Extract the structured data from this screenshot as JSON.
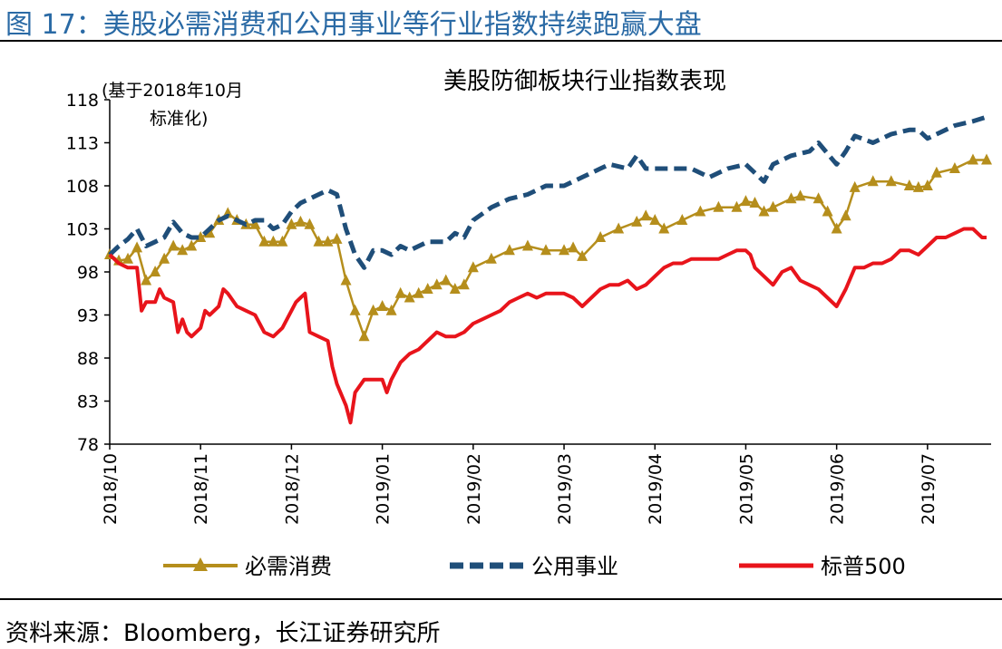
{
  "figure_title": "图 17：美股必需消费和公用事业等行业指数持续跑赢大盘",
  "source_note": "资料来源：Bloomberg，长江证券研究所",
  "colors": {
    "title_blue": "#2a6aa5",
    "staples": "#b58e1c",
    "utilities": "#1f4e79",
    "sp500": "#e8141b"
  },
  "chart_data": {
    "type": "line",
    "title": "美股防御板块行业指数表现",
    "annotation": [
      "(基于2018年10月",
      "标准化)"
    ],
    "xlabel": "",
    "ylabel": "",
    "ylim": [
      78,
      118
    ],
    "yticks": [
      78,
      83,
      88,
      93,
      98,
      103,
      108,
      113,
      118
    ],
    "x_month_index_range": [
      0,
      9.7
    ],
    "xticks": [
      {
        "x": 0,
        "label": "2018/10"
      },
      {
        "x": 1,
        "label": "2018/11"
      },
      {
        "x": 2,
        "label": "2018/12"
      },
      {
        "x": 3,
        "label": "2019/01"
      },
      {
        "x": 4,
        "label": "2019/02"
      },
      {
        "x": 5,
        "label": "2019/03"
      },
      {
        "x": 6,
        "label": "2019/04"
      },
      {
        "x": 7,
        "label": "2019/05"
      },
      {
        "x": 8,
        "label": "2019/06"
      },
      {
        "x": 9,
        "label": "2019/07"
      }
    ],
    "legend_position": "bottom",
    "series": [
      {
        "name": "必需消费",
        "style": "triangle-marker",
        "points": [
          [
            0,
            100
          ],
          [
            0.1,
            99.3
          ],
          [
            0.2,
            99.5
          ],
          [
            0.3,
            100.8
          ],
          [
            0.4,
            97
          ],
          [
            0.5,
            98
          ],
          [
            0.6,
            99.5
          ],
          [
            0.7,
            101
          ],
          [
            0.8,
            100.5
          ],
          [
            0.9,
            101
          ],
          [
            1.0,
            102
          ],
          [
            1.1,
            102.5
          ],
          [
            1.2,
            104
          ],
          [
            1.3,
            104.8
          ],
          [
            1.4,
            104
          ],
          [
            1.5,
            103.5
          ],
          [
            1.6,
            103.5
          ],
          [
            1.7,
            101.5
          ],
          [
            1.8,
            101.5
          ],
          [
            1.9,
            101.5
          ],
          [
            2.0,
            103.5
          ],
          [
            2.1,
            103.8
          ],
          [
            2.2,
            103.5
          ],
          [
            2.3,
            101.5
          ],
          [
            2.4,
            101.5
          ],
          [
            2.5,
            101.8
          ],
          [
            2.6,
            97
          ],
          [
            2.7,
            93.5
          ],
          [
            2.8,
            90.5
          ],
          [
            2.9,
            93.5
          ],
          [
            3.0,
            94
          ],
          [
            3.1,
            93.5
          ],
          [
            3.2,
            95.5
          ],
          [
            3.3,
            95
          ],
          [
            3.4,
            95.5
          ],
          [
            3.5,
            96
          ],
          [
            3.6,
            96.5
          ],
          [
            3.7,
            97
          ],
          [
            3.8,
            96
          ],
          [
            3.9,
            96.5
          ],
          [
            4.0,
            98.5
          ],
          [
            4.2,
            99.5
          ],
          [
            4.4,
            100.5
          ],
          [
            4.6,
            101
          ],
          [
            4.8,
            100.5
          ],
          [
            5.0,
            100.5
          ],
          [
            5.1,
            100.8
          ],
          [
            5.2,
            99.8
          ],
          [
            5.4,
            102
          ],
          [
            5.6,
            103
          ],
          [
            5.8,
            103.8
          ],
          [
            5.9,
            104.5
          ],
          [
            6.0,
            104
          ],
          [
            6.1,
            103
          ],
          [
            6.3,
            104
          ],
          [
            6.5,
            105
          ],
          [
            6.7,
            105.5
          ],
          [
            6.9,
            105.5
          ],
          [
            7.0,
            106.2
          ],
          [
            7.1,
            106
          ],
          [
            7.2,
            105
          ],
          [
            7.3,
            105.5
          ],
          [
            7.5,
            106.5
          ],
          [
            7.6,
            106.8
          ],
          [
            7.8,
            106.5
          ],
          [
            7.9,
            105
          ],
          [
            8.0,
            103
          ],
          [
            8.1,
            104.5
          ],
          [
            8.2,
            107.8
          ],
          [
            8.4,
            108.5
          ],
          [
            8.6,
            108.5
          ],
          [
            8.8,
            108
          ],
          [
            8.9,
            107.8
          ],
          [
            9.0,
            108
          ],
          [
            9.1,
            109.5
          ],
          [
            9.3,
            110
          ],
          [
            9.5,
            111
          ],
          [
            9.65,
            111
          ]
        ]
      },
      {
        "name": "公用事业",
        "style": "dashed",
        "points": [
          [
            0,
            100
          ],
          [
            0.1,
            101
          ],
          [
            0.2,
            101.8
          ],
          [
            0.3,
            103
          ],
          [
            0.4,
            101
          ],
          [
            0.5,
            101.5
          ],
          [
            0.6,
            102
          ],
          [
            0.7,
            103.8
          ],
          [
            0.8,
            102.5
          ],
          [
            0.9,
            102
          ],
          [
            1.0,
            102
          ],
          [
            1.1,
            103
          ],
          [
            1.2,
            104
          ],
          [
            1.3,
            104.5
          ],
          [
            1.4,
            104
          ],
          [
            1.5,
            103.5
          ],
          [
            1.6,
            104
          ],
          [
            1.7,
            104
          ],
          [
            1.8,
            103
          ],
          [
            1.9,
            103.5
          ],
          [
            2.0,
            105
          ],
          [
            2.1,
            106
          ],
          [
            2.2,
            106.5
          ],
          [
            2.3,
            107
          ],
          [
            2.4,
            107.5
          ],
          [
            2.5,
            107
          ],
          [
            2.6,
            103
          ],
          [
            2.7,
            100
          ],
          [
            2.8,
            98.5
          ],
          [
            2.9,
            100.5
          ],
          [
            3.0,
            100.5
          ],
          [
            3.1,
            100
          ],
          [
            3.2,
            101
          ],
          [
            3.3,
            100.5
          ],
          [
            3.4,
            101
          ],
          [
            3.5,
            101.5
          ],
          [
            3.6,
            101.5
          ],
          [
            3.7,
            101.5
          ],
          [
            3.8,
            102.5
          ],
          [
            3.9,
            102
          ],
          [
            4.0,
            104
          ],
          [
            4.2,
            105.5
          ],
          [
            4.4,
            106.5
          ],
          [
            4.6,
            107
          ],
          [
            4.8,
            108
          ],
          [
            5.0,
            108
          ],
          [
            5.2,
            109
          ],
          [
            5.4,
            110
          ],
          [
            5.5,
            110.5
          ],
          [
            5.7,
            110
          ],
          [
            5.8,
            111.5
          ],
          [
            5.9,
            110
          ],
          [
            6.0,
            110
          ],
          [
            6.2,
            110
          ],
          [
            6.4,
            110
          ],
          [
            6.6,
            109
          ],
          [
            6.8,
            110
          ],
          [
            7.0,
            110.5
          ],
          [
            7.1,
            109.5
          ],
          [
            7.2,
            108.5
          ],
          [
            7.3,
            110.5
          ],
          [
            7.5,
            111.5
          ],
          [
            7.7,
            112
          ],
          [
            7.8,
            113
          ],
          [
            8.0,
            110.5
          ],
          [
            8.1,
            112
          ],
          [
            8.2,
            113.8
          ],
          [
            8.4,
            113
          ],
          [
            8.6,
            114
          ],
          [
            8.8,
            114.5
          ],
          [
            8.9,
            114.5
          ],
          [
            9.0,
            113.5
          ],
          [
            9.1,
            114
          ],
          [
            9.3,
            115
          ],
          [
            9.5,
            115.5
          ],
          [
            9.65,
            116
          ]
        ]
      },
      {
        "name": "标普500",
        "style": "solid",
        "points": [
          [
            0,
            100
          ],
          [
            0.1,
            99
          ],
          [
            0.2,
            98.5
          ],
          [
            0.3,
            98.5
          ],
          [
            0.35,
            93.5
          ],
          [
            0.4,
            94.5
          ],
          [
            0.5,
            94.5
          ],
          [
            0.55,
            96
          ],
          [
            0.6,
            95
          ],
          [
            0.7,
            94.5
          ],
          [
            0.75,
            91
          ],
          [
            0.8,
            92.5
          ],
          [
            0.85,
            91
          ],
          [
            0.9,
            90.5
          ],
          [
            1.0,
            91.5
          ],
          [
            1.05,
            93.5
          ],
          [
            1.1,
            93
          ],
          [
            1.2,
            94
          ],
          [
            1.25,
            96
          ],
          [
            1.3,
            95.5
          ],
          [
            1.4,
            94
          ],
          [
            1.5,
            93.5
          ],
          [
            1.6,
            93
          ],
          [
            1.7,
            91
          ],
          [
            1.8,
            90.5
          ],
          [
            1.9,
            91.5
          ],
          [
            2.0,
            93.5
          ],
          [
            2.05,
            94.5
          ],
          [
            2.1,
            95
          ],
          [
            2.15,
            95.5
          ],
          [
            2.2,
            91
          ],
          [
            2.3,
            90.5
          ],
          [
            2.4,
            90
          ],
          [
            2.45,
            87
          ],
          [
            2.5,
            85
          ],
          [
            2.6,
            82.5
          ],
          [
            2.65,
            80.5
          ],
          [
            2.7,
            84
          ],
          [
            2.8,
            85.5
          ],
          [
            2.9,
            85.5
          ],
          [
            3.0,
            85.5
          ],
          [
            3.05,
            84
          ],
          [
            3.1,
            85.5
          ],
          [
            3.2,
            87.5
          ],
          [
            3.3,
            88.5
          ],
          [
            3.4,
            89
          ],
          [
            3.5,
            90
          ],
          [
            3.6,
            91
          ],
          [
            3.7,
            90.5
          ],
          [
            3.8,
            90.5
          ],
          [
            3.9,
            91
          ],
          [
            4.0,
            92
          ],
          [
            4.1,
            92.5
          ],
          [
            4.2,
            93
          ],
          [
            4.3,
            93.5
          ],
          [
            4.4,
            94.5
          ],
          [
            4.5,
            95
          ],
          [
            4.6,
            95.5
          ],
          [
            4.7,
            95
          ],
          [
            4.8,
            95.5
          ],
          [
            4.9,
            95.5
          ],
          [
            5.0,
            95.5
          ],
          [
            5.1,
            95
          ],
          [
            5.2,
            94
          ],
          [
            5.3,
            95
          ],
          [
            5.4,
            96
          ],
          [
            5.5,
            96.5
          ],
          [
            5.6,
            96.5
          ],
          [
            5.7,
            97
          ],
          [
            5.8,
            96
          ],
          [
            5.9,
            96.5
          ],
          [
            6.0,
            97.5
          ],
          [
            6.1,
            98.5
          ],
          [
            6.2,
            99
          ],
          [
            6.3,
            99
          ],
          [
            6.4,
            99.5
          ],
          [
            6.5,
            99.5
          ],
          [
            6.6,
            99.5
          ],
          [
            6.7,
            99.5
          ],
          [
            6.8,
            100
          ],
          [
            6.9,
            100.5
          ],
          [
            7.0,
            100.5
          ],
          [
            7.05,
            100
          ],
          [
            7.1,
            98.5
          ],
          [
            7.2,
            97.5
          ],
          [
            7.3,
            96.5
          ],
          [
            7.4,
            98
          ],
          [
            7.5,
            98.5
          ],
          [
            7.6,
            97
          ],
          [
            7.7,
            96.5
          ],
          [
            7.8,
            96
          ],
          [
            7.9,
            95
          ],
          [
            8.0,
            94
          ],
          [
            8.1,
            96
          ],
          [
            8.2,
            98.5
          ],
          [
            8.3,
            98.5
          ],
          [
            8.4,
            99
          ],
          [
            8.5,
            99
          ],
          [
            8.6,
            99.5
          ],
          [
            8.7,
            100.5
          ],
          [
            8.8,
            100.5
          ],
          [
            8.9,
            100
          ],
          [
            9.0,
            101
          ],
          [
            9.1,
            102
          ],
          [
            9.2,
            102
          ],
          [
            9.3,
            102.5
          ],
          [
            9.4,
            103
          ],
          [
            9.5,
            103
          ],
          [
            9.6,
            102
          ],
          [
            9.65,
            102
          ]
        ]
      }
    ]
  }
}
